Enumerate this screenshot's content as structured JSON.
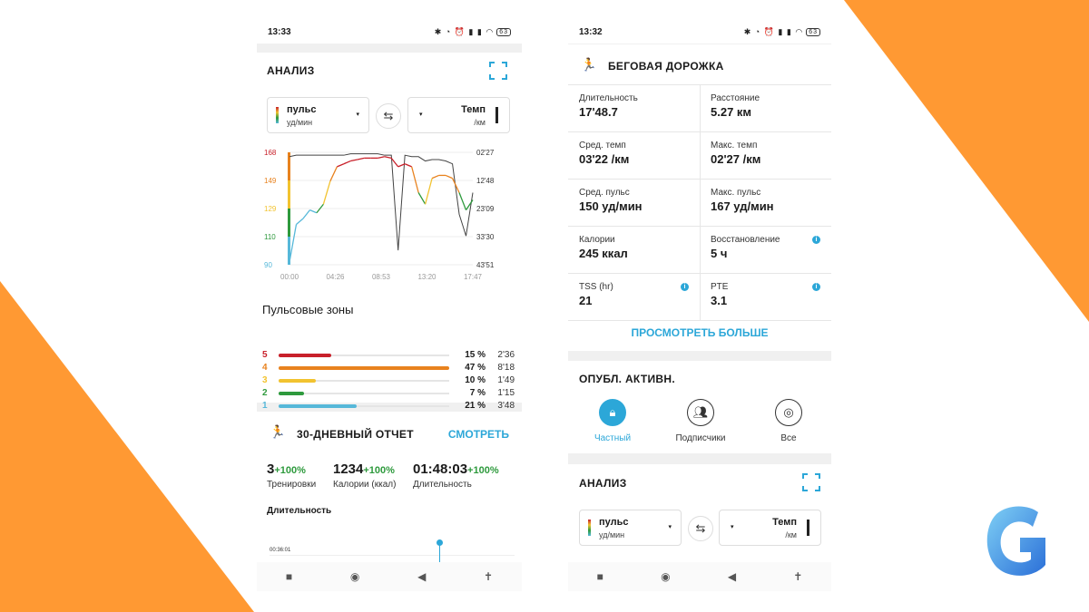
{
  "colors": {
    "orange": "#ff9933",
    "accent": "#2ca7d8",
    "zone5": "#c8202a",
    "zone4": "#e8821e",
    "zone3": "#f2c330",
    "zone2": "#2e9a3d",
    "zone1": "#56b8d9"
  },
  "left": {
    "status": {
      "time": "13:33",
      "battery": "63"
    },
    "analysis": {
      "title": "АНАЛИЗ",
      "sel1": {
        "label": "пульс",
        "unit": "уд/мин"
      },
      "sel2": {
        "label": "Темп",
        "unit": "/км"
      },
      "chart_data": {
        "type": "line",
        "y_left_ticks": [
          "168",
          "149",
          "129",
          "110",
          "90"
        ],
        "y_right_ticks": [
          "02'27",
          "12'48",
          "23'09",
          "33'30",
          "43'51"
        ],
        "x_ticks": [
          "00:00",
          "04:26",
          "08:53",
          "13:20",
          "17:47"
        ],
        "series": [
          {
            "values": [
              92,
              118,
              122,
              128,
              126,
              132,
              148,
              158,
              160,
              162,
              163,
              164,
              164,
              164,
              165,
              164,
              158,
              160,
              158,
              140,
              132,
              150,
              152,
              152,
              150,
              140,
              128,
              135
            ]
          },
          {
            "values": [
              165,
              166,
              166,
              166,
              166,
              166,
              166,
              166,
              166,
              167,
              167,
              167,
              167,
              167,
              166,
              166,
              100,
              166,
              165,
              165,
              162,
              163,
              163,
              162,
              160,
              125,
              110,
              140
            ]
          }
        ]
      }
    },
    "zones": {
      "title": "Пульсовые зоны",
      "items": [
        {
          "n": "5",
          "pct": "15 %",
          "time": "2'36",
          "value": 0.31
        },
        {
          "n": "4",
          "pct": "47 %",
          "time": "8'18",
          "value": 1.0
        },
        {
          "n": "3",
          "pct": "10 %",
          "time": "1'49",
          "value": 0.22
        },
        {
          "n": "2",
          "pct": "7 %",
          "time": "1'15",
          "value": 0.15
        },
        {
          "n": "1",
          "pct": "21 %",
          "time": "3'48",
          "value": 0.46
        }
      ]
    },
    "report": {
      "title": "30-ДНЕВНЫЙ ОТЧЕТ",
      "link": "СМОТРЕТЬ",
      "stats": [
        {
          "value": "3",
          "delta": "+100%",
          "label": "Тренировки"
        },
        {
          "value": "1234",
          "delta": "+100%",
          "label": "Калории (ккал)"
        },
        {
          "value": "01:48:03",
          "delta": "+100%",
          "label": "Длительность"
        }
      ],
      "chart_title": "Длительность",
      "chart_tick": "00:36:01"
    }
  },
  "right": {
    "status": {
      "time": "13:32",
      "battery": "63"
    },
    "activity": {
      "title": "БЕГОВАЯ ДОРОЖКА",
      "cells": [
        {
          "label": "Длительность",
          "value": "17'48.7"
        },
        {
          "label": "Расстояние",
          "value": "5.27 км"
        },
        {
          "label": "Сред. темп",
          "value": "03'22 /км"
        },
        {
          "label": "Макс. темп",
          "value": "02'27 /км"
        },
        {
          "label": "Сред. пульс",
          "value": "150 уд/мин"
        },
        {
          "label": "Макс. пульс",
          "value": "167 уд/мин"
        },
        {
          "label": "Калории",
          "value": "245 ккал"
        },
        {
          "label": "Восстановление",
          "value": "5 ч"
        },
        {
          "label": "TSS (hr)",
          "value": "21"
        },
        {
          "label": "PTE",
          "value": "3.1"
        }
      ],
      "more": "ПРОСМОТРЕТЬ БОЛЬШЕ"
    },
    "publish": {
      "title": "ОПУБЛ. АКТИВН.",
      "options": [
        "Частный",
        "Подписчики",
        "Все"
      ]
    },
    "analysis": {
      "title": "АНАЛИЗ",
      "sel1": {
        "label": "пульс",
        "unit": "уд/мин"
      },
      "sel2": {
        "label": "Темп",
        "unit": "/км"
      }
    }
  }
}
